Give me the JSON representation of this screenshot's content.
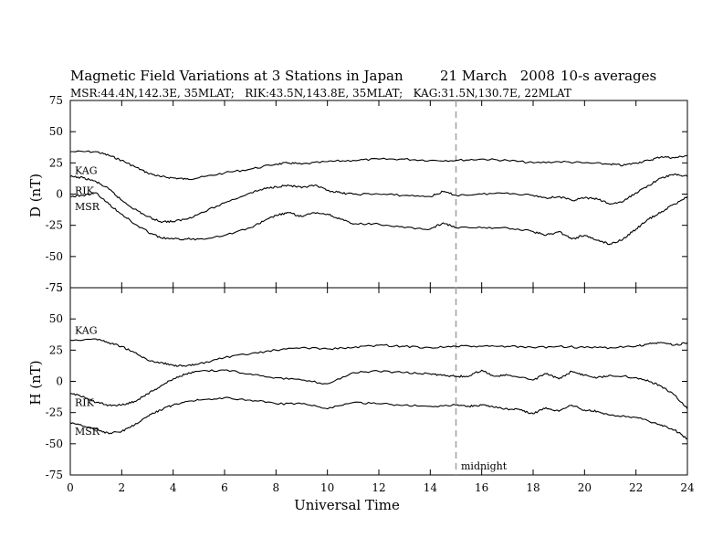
{
  "header": {
    "title": "Magnetic Field Variations at 3 Stations in Japan",
    "date": "21 March   2008",
    "averaging": "10-s averages",
    "stations_line": "MSR:44.4N,142.3E, 35MLAT;   RIK:43.5N,143.8E, 35MLAT;   KAG:31.5N,130.7E, 22MLAT"
  },
  "colors": {
    "line": "#000000",
    "midnight_marker": "#a0a0a0",
    "background": "#ffffff"
  },
  "chart_data": [
    {
      "type": "line",
      "panel": "top",
      "ylabel": "D (nT)",
      "ylim": [
        -75,
        75
      ],
      "yticks": [
        -75,
        -50,
        -25,
        0,
        25,
        50,
        75
      ],
      "xlim": [
        0,
        24
      ],
      "xticks": [
        0,
        2,
        4,
        6,
        8,
        10,
        12,
        14,
        16,
        18,
        20,
        22,
        24
      ],
      "grid": false,
      "legend": "inline labels at left",
      "series": [
        {
          "name": "KAG",
          "label_y": 19,
          "x": [
            0,
            1,
            1.5,
            2,
            2.5,
            3,
            3.5,
            4,
            4.5,
            5,
            6,
            7,
            8,
            8.5,
            9,
            10,
            11,
            12,
            13,
            14,
            15,
            16,
            17,
            18,
            19,
            20,
            21,
            21.5,
            22,
            22.5,
            23,
            23.5,
            24
          ],
          "y": [
            34,
            34,
            31,
            27,
            22,
            17,
            14,
            13,
            12,
            13,
            17,
            20,
            24,
            25,
            24,
            26,
            27,
            28,
            28,
            27,
            27,
            28,
            27,
            25,
            26,
            25,
            24,
            23,
            25,
            27,
            30,
            29,
            31
          ]
        },
        {
          "name": "RIK",
          "label_y": 3,
          "x": [
            0,
            0.5,
            1,
            1.5,
            2,
            2.5,
            3,
            3.5,
            4,
            4.5,
            5,
            6,
            7,
            7.5,
            8,
            8.5,
            9,
            9.5,
            10,
            10.5,
            11,
            12,
            13,
            14,
            14.5,
            15,
            16,
            17,
            18,
            18.5,
            19,
            19.5,
            20,
            20.5,
            21,
            21.5,
            22,
            22.5,
            23,
            23.5,
            24
          ],
          "y": [
            14,
            13,
            10,
            4,
            -5,
            -12,
            -18,
            -22,
            -22,
            -20,
            -16,
            -7,
            1,
            4,
            6,
            7,
            5,
            7,
            3,
            1,
            0,
            0,
            -1,
            -2,
            2,
            -1,
            0,
            1,
            -1,
            -3,
            -2,
            -5,
            -3,
            -4,
            -8,
            -6,
            1,
            7,
            13,
            16,
            14
          ]
        },
        {
          "name": "MSR",
          "label_y": -10,
          "x": [
            0,
            0.5,
            1,
            1.5,
            2,
            2.5,
            3,
            3.5,
            4,
            4.5,
            5,
            6,
            7,
            7.5,
            8,
            8.5,
            9,
            9.5,
            10,
            10.5,
            11,
            12,
            13,
            14,
            14.5,
            15,
            16,
            17,
            18,
            18.5,
            19,
            19.5,
            20,
            20.5,
            21,
            21.5,
            22,
            22.5,
            23,
            23.5,
            24
          ],
          "y": [
            -2,
            -1,
            1,
            -8,
            -16,
            -24,
            -30,
            -35,
            -36,
            -36,
            -36,
            -33,
            -27,
            -22,
            -17,
            -15,
            -18,
            -15,
            -16,
            -20,
            -24,
            -24,
            -27,
            -28,
            -23,
            -27,
            -27,
            -27,
            -30,
            -33,
            -30,
            -36,
            -33,
            -37,
            -40,
            -36,
            -28,
            -20,
            -14,
            -8,
            -2
          ]
        }
      ]
    },
    {
      "type": "line",
      "panel": "bottom",
      "ylabel": "H (nT)",
      "xlabel": "Universal Time",
      "ylim": [
        -75,
        75
      ],
      "yticks": [
        -75,
        -50,
        -25,
        0,
        25,
        50,
        75
      ],
      "xlim": [
        0,
        24
      ],
      "xticks": [
        0,
        2,
        4,
        6,
        8,
        10,
        12,
        14,
        16,
        18,
        20,
        22,
        24
      ],
      "grid": false,
      "legend": "inline labels at left",
      "series": [
        {
          "name": "KAG",
          "label_y": 41,
          "x": [
            0,
            1,
            1.5,
            2,
            2.5,
            3,
            3.5,
            4,
            4.5,
            5,
            6,
            7,
            8,
            9,
            10,
            11,
            12,
            13,
            14,
            15,
            16,
            17,
            18,
            19,
            20,
            21,
            22,
            22.5,
            23,
            23.5,
            24
          ],
          "y": [
            33,
            34,
            31,
            28,
            23,
            17,
            15,
            13,
            12,
            14,
            19,
            22,
            25,
            27,
            26,
            27,
            29,
            28,
            27,
            28,
            28,
            28,
            27,
            28,
            27,
            27,
            28,
            30,
            31,
            29,
            31
          ]
        },
        {
          "name": "RIK",
          "label_y": -17,
          "x": [
            0,
            0.5,
            1,
            1.5,
            2,
            2.5,
            3,
            3.5,
            4,
            4.5,
            5,
            6,
            7,
            8,
            9,
            10,
            11,
            12,
            13,
            14,
            14.5,
            15,
            15.5,
            16,
            16.5,
            17,
            18,
            18.5,
            19,
            19.5,
            20,
            20.5,
            21,
            22,
            22.5,
            23,
            23.5,
            24
          ],
          "y": [
            -10,
            -12,
            -17,
            -19,
            -19,
            -16,
            -10,
            -4,
            2,
            6,
            8,
            9,
            6,
            3,
            1,
            -2,
            7,
            8,
            7,
            6,
            5,
            4,
            4,
            9,
            4,
            5,
            1,
            6,
            2,
            8,
            5,
            3,
            5,
            3,
            0,
            -4,
            -11,
            -22
          ]
        },
        {
          "name": "MSR",
          "label_y": -40,
          "x": [
            0,
            0.5,
            1,
            1.5,
            2,
            2.5,
            3,
            3.5,
            4,
            4.5,
            5,
            6,
            7,
            8,
            9,
            10,
            11,
            12,
            13,
            14,
            15,
            15.5,
            16,
            16.5,
            17,
            17.5,
            18,
            18.5,
            19,
            19.5,
            20,
            20.5,
            21,
            22,
            22.5,
            23,
            23.5,
            24
          ],
          "y": [
            -33,
            -36,
            -38,
            -42,
            -40,
            -35,
            -28,
            -23,
            -19,
            -16,
            -15,
            -13,
            -15,
            -18,
            -18,
            -22,
            -17,
            -18,
            -19,
            -20,
            -19,
            -20,
            -19,
            -21,
            -22,
            -23,
            -26,
            -21,
            -24,
            -19,
            -23,
            -24,
            -27,
            -29,
            -32,
            -35,
            -39,
            -46
          ]
        }
      ]
    }
  ],
  "annotations": {
    "midnight_label": "midnight",
    "midnight_ut": 15
  }
}
